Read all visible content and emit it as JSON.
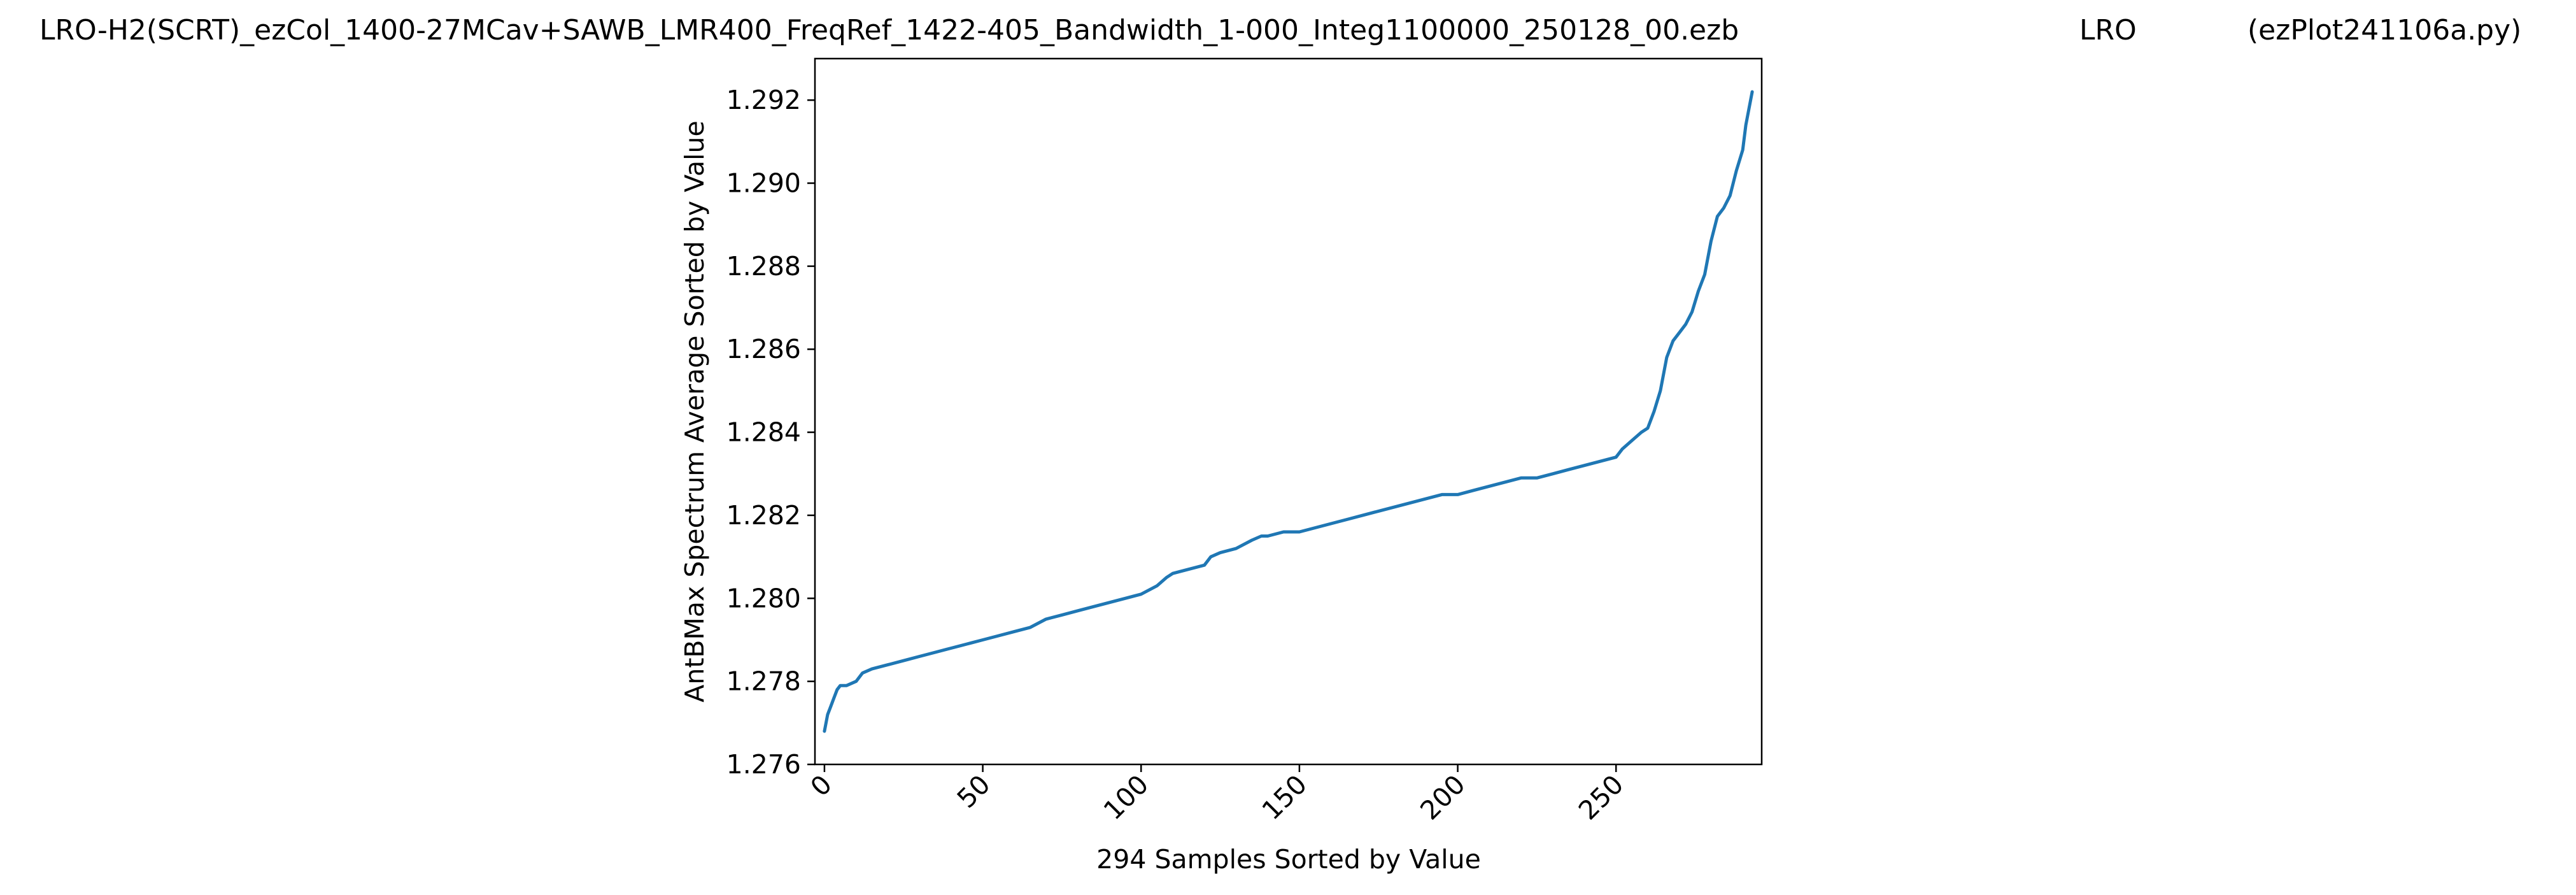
{
  "header": {
    "filename": "LRO-H2(SCRT)_ezCol_1400-27MCav+SAWB_LMR400_FreqRef_1422-405_Bandwidth_1-000_Integ1100000_250128_00.ezb",
    "site": "LRO",
    "program": "(ezPlot241106a.py)"
  },
  "chart_data": {
    "type": "line",
    "title": "",
    "xlabel": "294 Samples Sorted by Value",
    "ylabel": "AntBMax Spectrum Average Sorted by Value",
    "xlim": [
      -3,
      296
    ],
    "ylim": [
      1.276,
      1.293
    ],
    "x_ticks": [
      "0",
      "50",
      "100",
      "150",
      "200",
      "250"
    ],
    "y_ticks": [
      "1.276",
      "1.278",
      "1.280",
      "1.282",
      "1.284",
      "1.286",
      "1.288",
      "1.290",
      "1.292"
    ],
    "grid": false,
    "legend": "none",
    "colors": {
      "line": "#1f77b4"
    },
    "series": [
      {
        "x": [
          0,
          1,
          2,
          3,
          4,
          5,
          6,
          7,
          10,
          12,
          15,
          20,
          25,
          30,
          35,
          40,
          45,
          50,
          55,
          60,
          65,
          70,
          75,
          80,
          85,
          90,
          95,
          100,
          105,
          108,
          110,
          115,
          120,
          122,
          125,
          130,
          135,
          138,
          140,
          145,
          150,
          155,
          160,
          165,
          170,
          175,
          180,
          185,
          190,
          195,
          200,
          205,
          210,
          215,
          220,
          225,
          230,
          235,
          240,
          245,
          250,
          252,
          255,
          258,
          260,
          262,
          264,
          266,
          268,
          270,
          272,
          274,
          276,
          278,
          280,
          282,
          284,
          286,
          288,
          290,
          291,
          292,
          293
        ],
        "y": [
          1.2768,
          1.2772,
          1.2774,
          1.2776,
          1.2778,
          1.2779,
          1.2779,
          1.2779,
          1.278,
          1.2782,
          1.2783,
          1.2784,
          1.2785,
          1.2786,
          1.2787,
          1.2788,
          1.2789,
          1.279,
          1.2791,
          1.2792,
          1.2793,
          1.2795,
          1.2796,
          1.2797,
          1.2798,
          1.2799,
          1.28,
          1.2801,
          1.2803,
          1.2805,
          1.2806,
          1.2807,
          1.2808,
          1.281,
          1.2811,
          1.2812,
          1.2814,
          1.2815,
          1.2815,
          1.2816,
          1.2816,
          1.2817,
          1.2818,
          1.2819,
          1.282,
          1.2821,
          1.2822,
          1.2823,
          1.2824,
          1.2825,
          1.2825,
          1.2826,
          1.2827,
          1.2828,
          1.2829,
          1.2829,
          1.283,
          1.2831,
          1.2832,
          1.2833,
          1.2834,
          1.2836,
          1.2838,
          1.284,
          1.2841,
          1.2845,
          1.285,
          1.2858,
          1.2862,
          1.2864,
          1.2866,
          1.2869,
          1.2874,
          1.2878,
          1.2886,
          1.2892,
          1.2894,
          1.2897,
          1.2903,
          1.2908,
          1.2914,
          1.2918,
          1.2922
        ]
      }
    ]
  }
}
